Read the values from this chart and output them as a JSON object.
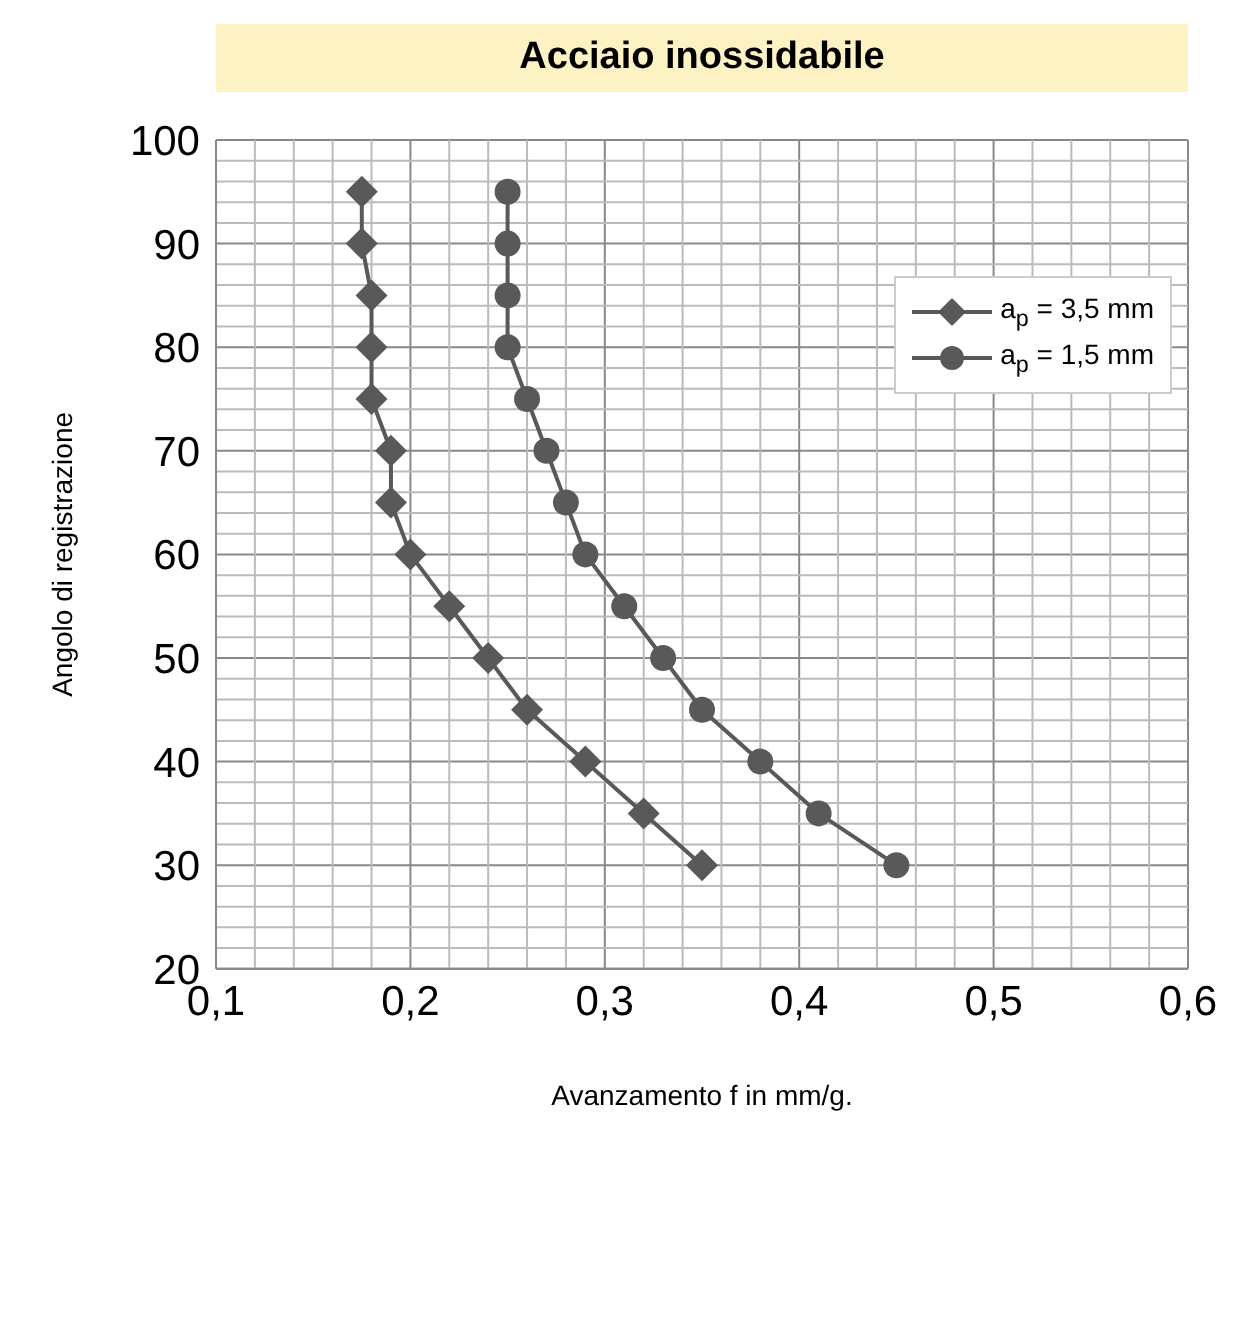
{
  "chart_data": {
    "type": "line",
    "title": "Acciaio inossidabile",
    "xlabel": "Avanzamento f in mm/g.",
    "ylabel": "Angolo di registrazione",
    "series": [
      {
        "name": "a$_{p}$ = 3,5 mm",
        "marker": "diamond",
        "color": "#595959",
        "x": [
          0.175,
          0.175,
          0.18,
          0.18,
          0.18,
          0.19,
          0.19,
          0.2,
          0.22,
          0.24,
          0.26,
          0.29,
          0.32,
          0.35
        ],
        "values": [
          95,
          90,
          85,
          80,
          75,
          70,
          65,
          60,
          55,
          50,
          45,
          40,
          35,
          30
        ]
      },
      {
        "name": "a$_{p}$ = 1,5 mm",
        "marker": "circle",
        "color": "#595959",
        "x": [
          0.25,
          0.25,
          0.25,
          0.25,
          0.26,
          0.27,
          0.28,
          0.29,
          0.31,
          0.33,
          0.35,
          0.38,
          0.41,
          0.45
        ],
        "values": [
          95,
          90,
          85,
          80,
          75,
          70,
          65,
          60,
          55,
          50,
          45,
          40,
          35,
          30
        ]
      }
    ],
    "xlim": [
      0.1,
      0.6
    ],
    "xticks": [
      {
        "value": 0.1,
        "label": "0,1"
      },
      {
        "value": 0.2,
        "label": "0,2"
      },
      {
        "value": 0.3,
        "label": "0,3"
      },
      {
        "value": 0.4,
        "label": "0,4"
      },
      {
        "value": 0.5,
        "label": "0,5"
      },
      {
        "value": 0.6,
        "label": "0,6"
      }
    ],
    "ylim": [
      20,
      100
    ],
    "yticks": [
      20,
      30,
      40,
      50,
      60,
      70,
      80,
      90,
      100
    ],
    "grid": true,
    "legend": "top right",
    "line_style": "solid"
  }
}
